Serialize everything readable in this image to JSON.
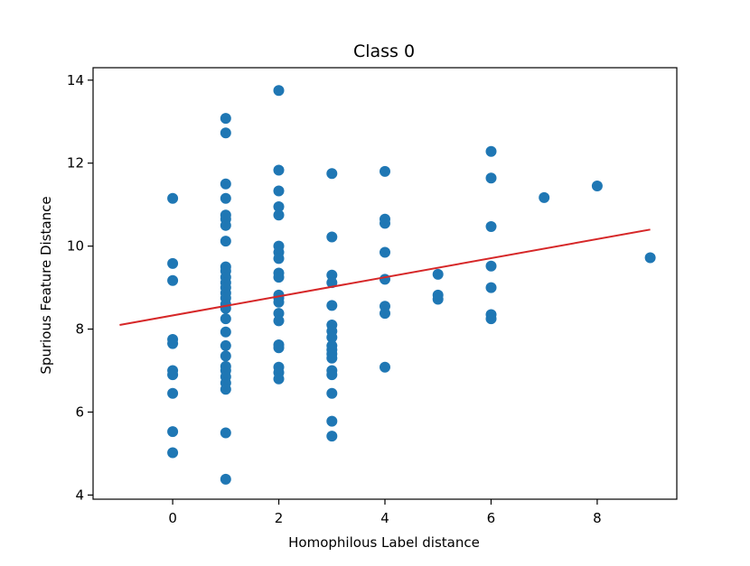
{
  "chart_data": {
    "type": "scatter",
    "title": "Class 0",
    "xlabel": "Homophilous Label distance",
    "ylabel": "Spurious Feature Distance",
    "xlim": [
      -1.5,
      9.5
    ],
    "ylim": [
      3.9,
      14.3
    ],
    "xticks": [
      0,
      2,
      4,
      6,
      8
    ],
    "yticks": [
      4,
      6,
      8,
      10,
      12,
      14
    ],
    "grid": false,
    "legend": "none",
    "point_color": "#1f77b4",
    "line_color": "#d62728",
    "series": [
      {
        "points": [
          [
            0,
            11.15
          ],
          [
            0,
            9.58
          ],
          [
            0,
            9.17
          ],
          [
            0,
            7.75
          ],
          [
            0,
            7.65
          ],
          [
            0,
            7.0
          ],
          [
            0,
            6.9
          ],
          [
            0,
            6.45
          ],
          [
            0,
            5.53
          ],
          [
            0,
            5.02
          ],
          [
            1,
            13.08
          ],
          [
            1,
            12.73
          ],
          [
            1,
            11.5
          ],
          [
            1,
            11.15
          ],
          [
            1,
            10.75
          ],
          [
            1,
            10.65
          ],
          [
            1,
            10.5
          ],
          [
            1,
            10.12
          ],
          [
            1,
            9.5
          ],
          [
            1,
            9.4
          ],
          [
            1,
            9.25
          ],
          [
            1,
            9.12
          ],
          [
            1,
            9.0
          ],
          [
            1,
            8.87
          ],
          [
            1,
            8.75
          ],
          [
            1,
            8.6
          ],
          [
            1,
            8.5
          ],
          [
            1,
            8.25
          ],
          [
            1,
            7.93
          ],
          [
            1,
            7.6
          ],
          [
            1,
            7.35
          ],
          [
            1,
            7.1
          ],
          [
            1,
            7.0
          ],
          [
            1,
            6.85
          ],
          [
            1,
            6.7
          ],
          [
            1,
            6.55
          ],
          [
            1,
            5.5
          ],
          [
            1,
            4.38
          ],
          [
            2,
            13.75
          ],
          [
            2,
            11.83
          ],
          [
            2,
            11.33
          ],
          [
            2,
            10.95
          ],
          [
            2,
            10.75
          ],
          [
            2,
            10.0
          ],
          [
            2,
            9.85
          ],
          [
            2,
            9.7
          ],
          [
            2,
            9.35
          ],
          [
            2,
            9.25
          ],
          [
            2,
            8.82
          ],
          [
            2,
            8.75
          ],
          [
            2,
            8.65
          ],
          [
            2,
            8.38
          ],
          [
            2,
            8.2
          ],
          [
            2,
            7.62
          ],
          [
            2,
            7.55
          ],
          [
            2,
            7.08
          ],
          [
            2,
            6.95
          ],
          [
            2,
            6.8
          ],
          [
            3,
            11.75
          ],
          [
            3,
            10.22
          ],
          [
            3,
            9.3
          ],
          [
            3,
            9.12
          ],
          [
            3,
            8.57
          ],
          [
            3,
            8.1
          ],
          [
            3,
            7.95
          ],
          [
            3,
            7.8
          ],
          [
            3,
            7.6
          ],
          [
            3,
            7.5
          ],
          [
            3,
            7.4
          ],
          [
            3,
            7.3
          ],
          [
            3,
            7.0
          ],
          [
            3,
            6.9
          ],
          [
            3,
            6.45
          ],
          [
            3,
            5.78
          ],
          [
            3,
            5.42
          ],
          [
            4,
            11.8
          ],
          [
            4,
            10.65
          ],
          [
            4,
            10.55
          ],
          [
            4,
            9.85
          ],
          [
            4,
            9.2
          ],
          [
            4,
            8.55
          ],
          [
            4,
            8.38
          ],
          [
            4,
            7.08
          ],
          [
            5,
            9.32
          ],
          [
            5,
            8.82
          ],
          [
            5,
            8.72
          ],
          [
            6,
            12.28
          ],
          [
            6,
            11.64
          ],
          [
            6,
            10.47
          ],
          [
            6,
            9.52
          ],
          [
            6,
            9.0
          ],
          [
            6,
            8.35
          ],
          [
            6,
            8.25
          ],
          [
            7,
            11.17
          ],
          [
            8,
            11.45
          ],
          [
            9,
            9.72
          ]
        ]
      }
    ],
    "fit_line": {
      "x": [
        -1,
        9
      ],
      "y": [
        8.1,
        10.4
      ]
    }
  }
}
